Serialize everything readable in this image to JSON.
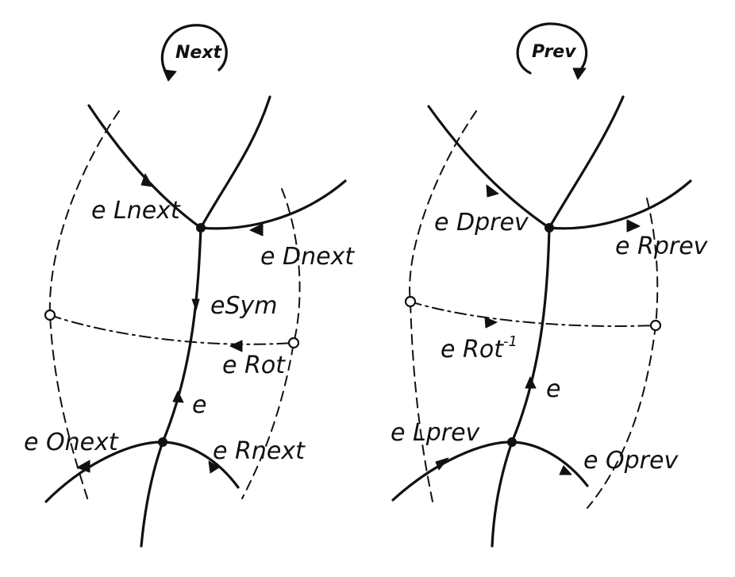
{
  "left_panel": {
    "title": "Next",
    "labels": {
      "lnext": "e Lnext",
      "dnext": "e Dnext",
      "sym": "eSym",
      "rot": "e Rot",
      "e": "e",
      "onext": "e Onext",
      "rnext": "e Rnext"
    }
  },
  "right_panel": {
    "title": "Prev",
    "labels": {
      "dprev": "e Dprev",
      "rprev": "e Rprev",
      "rotinv": "e Rot",
      "rotinv_sup": "-1",
      "e": "e",
      "lprev": "e Lprev",
      "oprev": "e Oprev"
    }
  }
}
